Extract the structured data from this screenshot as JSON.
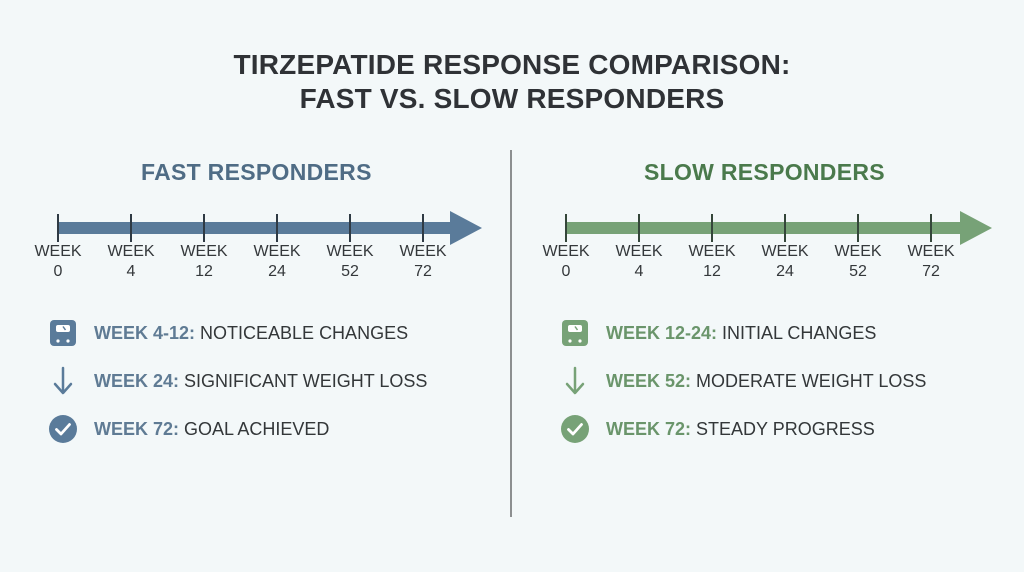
{
  "title": {
    "line1": "TIRZEPATIDE RESPONSE COMPARISON:",
    "line2": "FAST VS. SLOW RESPONDERS"
  },
  "colors": {
    "fast": "#5a7b9a",
    "fast_text": "#4f6c85",
    "slow": "#77a277",
    "slow_text": "#4a7a4c",
    "divider": "#8c8f90",
    "background": "#f3f8f9"
  },
  "fast": {
    "heading": "FAST RESPONDERS",
    "ticks": [
      {
        "line1": "WEEK",
        "line2": "0"
      },
      {
        "line1": "WEEK",
        "line2": "4"
      },
      {
        "line1": "WEEK",
        "line2": "12"
      },
      {
        "line1": "WEEK",
        "line2": "24"
      },
      {
        "line1": "WEEK",
        "line2": "52"
      },
      {
        "line1": "WEEK",
        "line2": "72"
      }
    ],
    "milestones": [
      {
        "icon": "scale-icon",
        "week": "WEEK 4-12:",
        "text": " NOTICEABLE CHANGES"
      },
      {
        "icon": "arrow-down-icon",
        "week": "WEEK 24:",
        "text": " SIGNIFICANT WEIGHT LOSS"
      },
      {
        "icon": "check-circle-icon",
        "week": "WEEK 72:",
        "text": " GOAL ACHIEVED"
      }
    ]
  },
  "slow": {
    "heading": "SLOW RESPONDERS",
    "ticks": [
      {
        "line1": "WEEK",
        "line2": "0"
      },
      {
        "line1": "WEEK",
        "line2": "4"
      },
      {
        "line1": "WEEK",
        "line2": "12"
      },
      {
        "line1": "WEEK",
        "line2": "24"
      },
      {
        "line1": "WEEK",
        "line2": "52"
      },
      {
        "line1": "WEEK",
        "line2": "72"
      }
    ],
    "milestones": [
      {
        "icon": "scale-icon",
        "week": "WEEK 12-24:",
        "text": " INITIAL CHANGES"
      },
      {
        "icon": "arrow-down-icon",
        "week": "WEEK 52:",
        "text": " MODERATE WEIGHT LOSS"
      },
      {
        "icon": "check-circle-icon",
        "week": "WEEK 72:",
        "text": " STEADY PROGRESS"
      }
    ]
  }
}
